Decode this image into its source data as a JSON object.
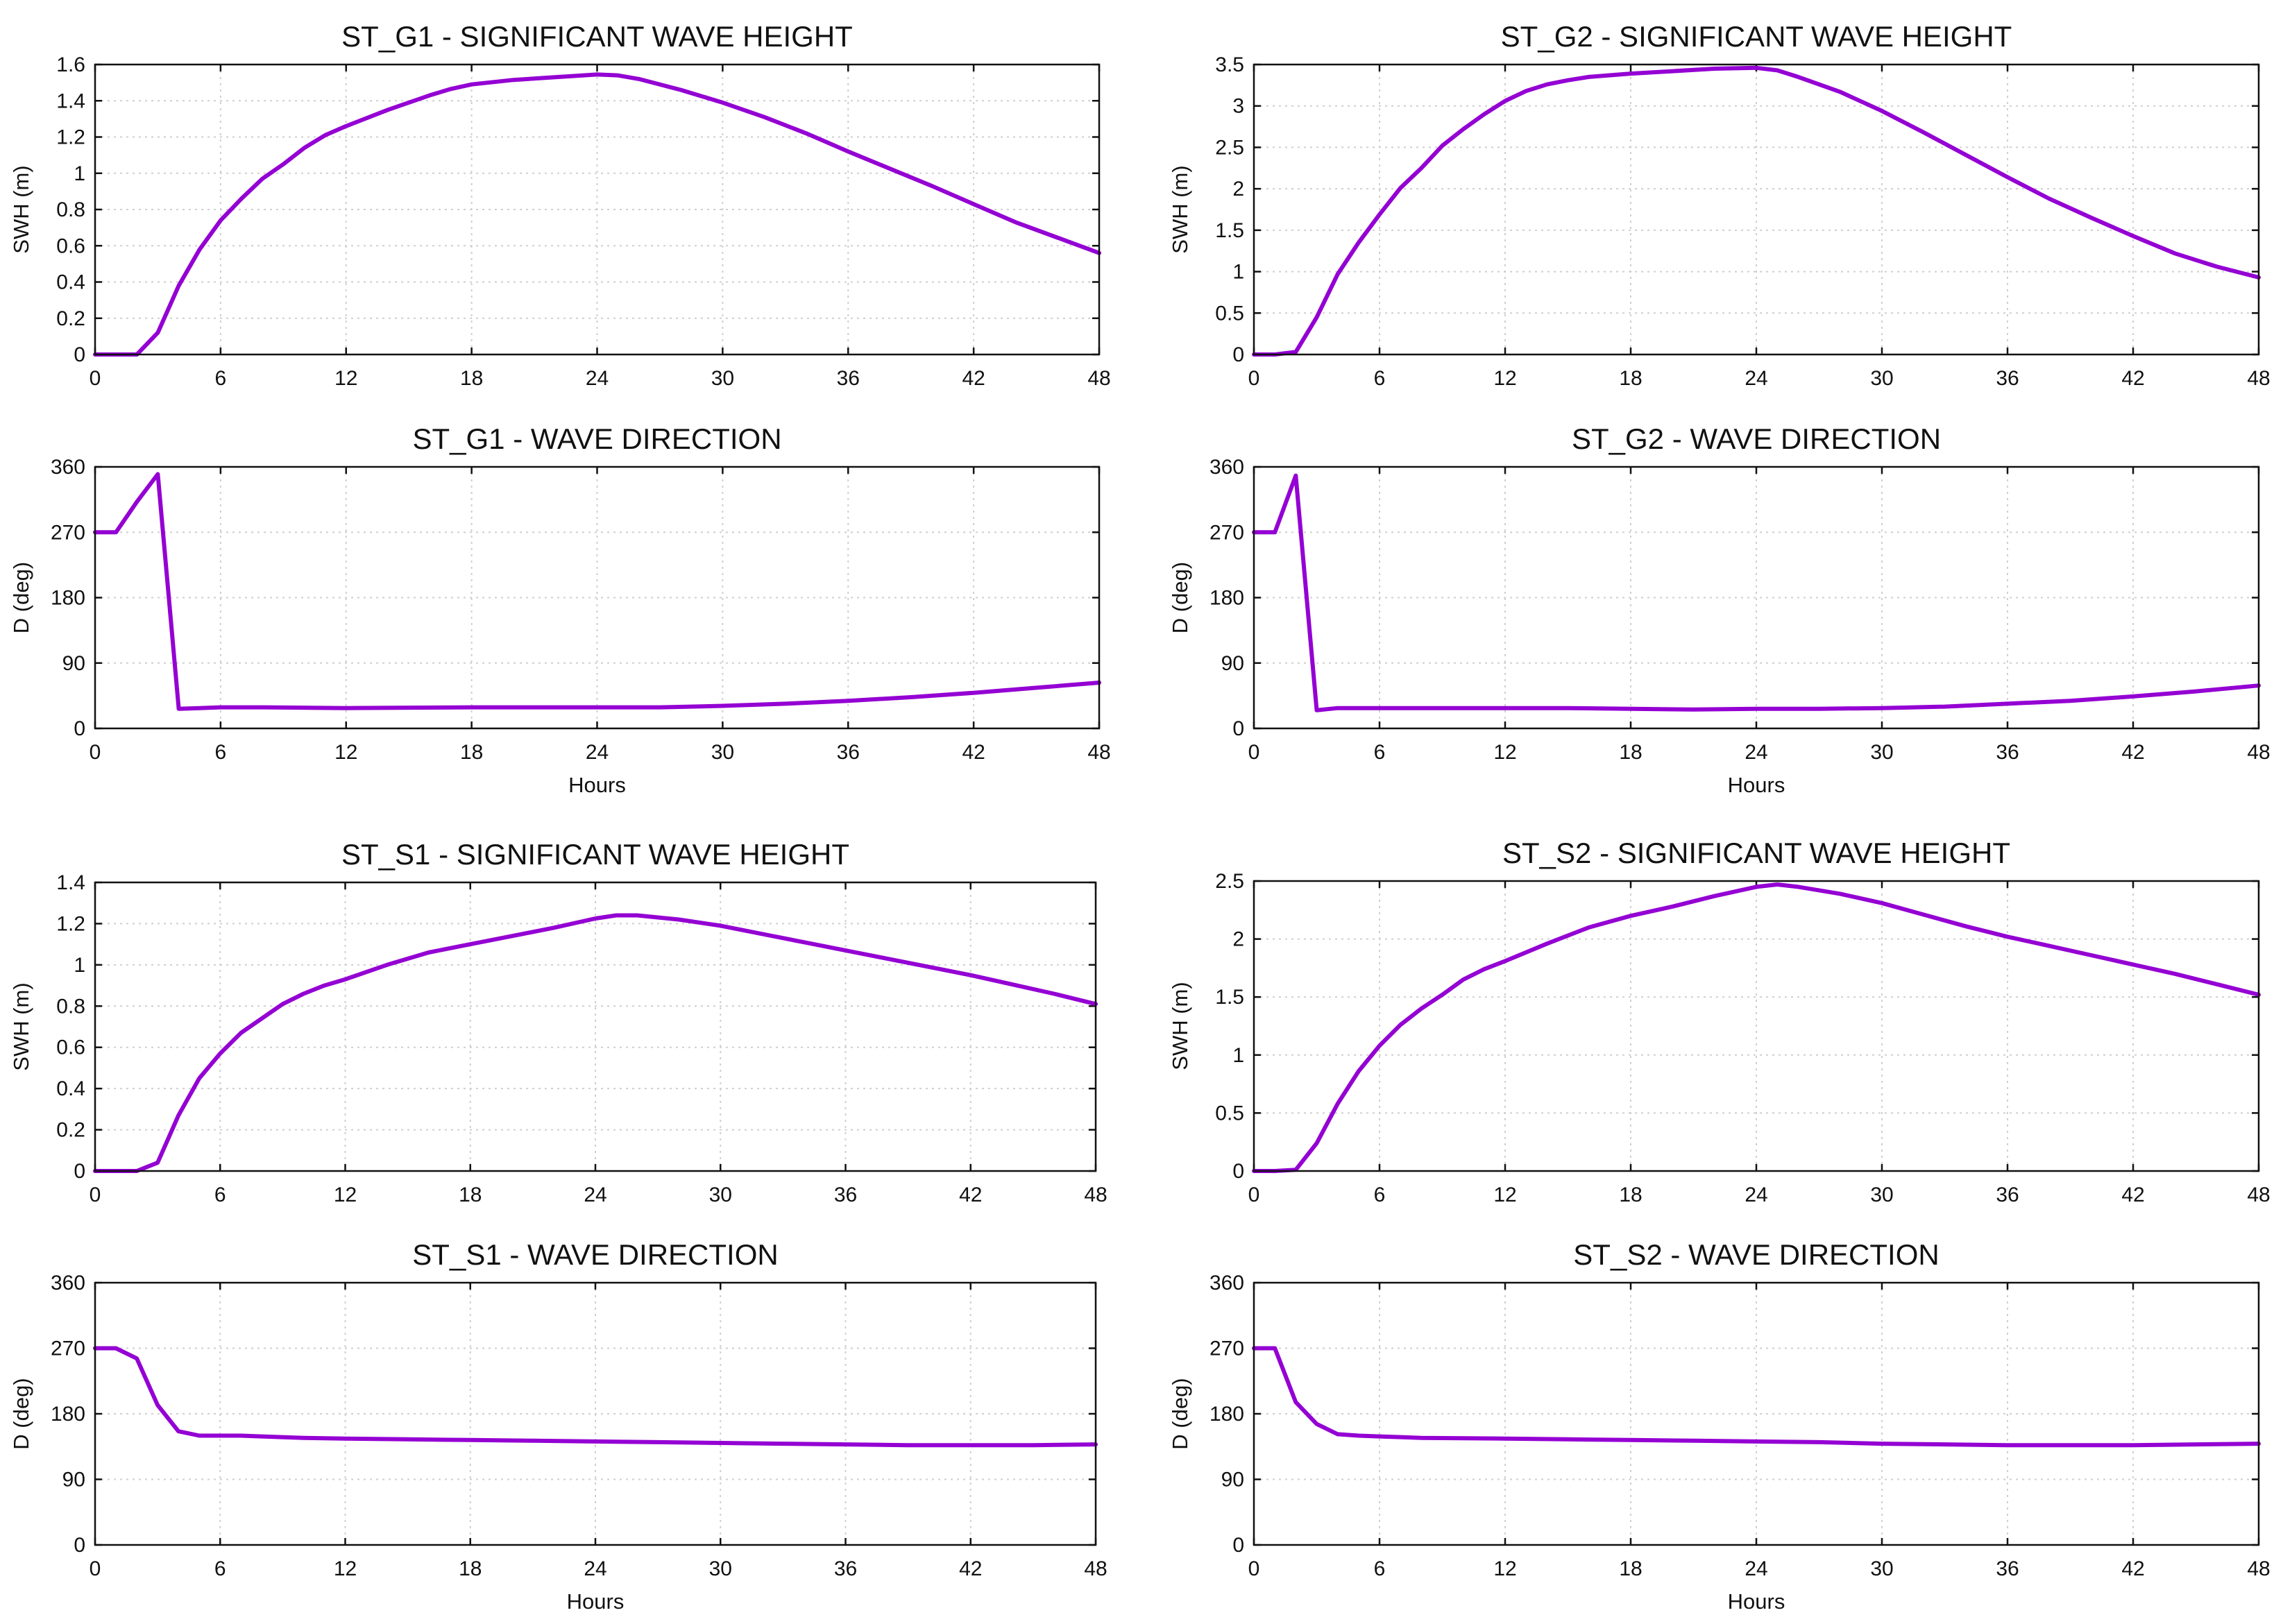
{
  "figure": {
    "series_color": "#9400d3"
  },
  "chart_data": [
    {
      "id": "g1-swh",
      "type": "line",
      "title": "ST_G1 - SIGNIFICANT WAVE HEIGHT",
      "xlabel": "",
      "ylabel": "SWH (m)",
      "xlim": [
        0,
        48
      ],
      "ylim": [
        0,
        1.6
      ],
      "xticks": [
        0,
        6,
        12,
        18,
        24,
        30,
        36,
        42,
        48
      ],
      "yticks": [
        0,
        0.2,
        0.4,
        0.6,
        0.8,
        1,
        1.2,
        1.4,
        1.6
      ],
      "x": [
        0,
        1,
        2,
        3,
        4,
        5,
        6,
        7,
        8,
        9,
        10,
        11,
        12,
        14,
        16,
        17,
        18,
        20,
        22,
        24,
        25,
        26,
        28,
        30,
        32,
        34,
        36,
        38,
        40,
        42,
        44,
        46,
        48
      ],
      "y": [
        0,
        0,
        0,
        0.12,
        0.38,
        0.58,
        0.74,
        0.86,
        0.97,
        1.05,
        1.14,
        1.21,
        1.26,
        1.35,
        1.43,
        1.465,
        1.49,
        1.515,
        1.53,
        1.545,
        1.54,
        1.52,
        1.46,
        1.39,
        1.31,
        1.22,
        1.12,
        1.025,
        0.93,
        0.83,
        0.73,
        0.645,
        0.56
      ]
    },
    {
      "id": "g2-swh",
      "type": "line",
      "title": "ST_G2 - SIGNIFICANT WAVE HEIGHT",
      "xlabel": "",
      "ylabel": "SWH (m)",
      "xlim": [
        0,
        48
      ],
      "ylim": [
        0,
        3.5
      ],
      "xticks": [
        0,
        6,
        12,
        18,
        24,
        30,
        36,
        42,
        48
      ],
      "yticks": [
        0,
        0.5,
        1,
        1.5,
        2,
        2.5,
        3,
        3.5
      ],
      "x": [
        0,
        1,
        2,
        3,
        4,
        5,
        6,
        7,
        8,
        9,
        10,
        11,
        12,
        13,
        14,
        15,
        16,
        18,
        20,
        22,
        24,
        25,
        26,
        28,
        30,
        32,
        34,
        36,
        38,
        40,
        42,
        44,
        46,
        48
      ],
      "y": [
        0,
        0,
        0.03,
        0.45,
        0.97,
        1.35,
        1.69,
        2.01,
        2.25,
        2.52,
        2.72,
        2.9,
        3.06,
        3.18,
        3.26,
        3.31,
        3.35,
        3.39,
        3.42,
        3.45,
        3.46,
        3.43,
        3.35,
        3.17,
        2.94,
        2.68,
        2.41,
        2.14,
        1.88,
        1.65,
        1.43,
        1.22,
        1.06,
        0.93
      ]
    },
    {
      "id": "g1-dir",
      "type": "line",
      "title": "ST_G1 -  WAVE DIRECTION",
      "xlabel": "Hours",
      "ylabel": "D (deg)",
      "xlim": [
        0,
        48
      ],
      "ylim": [
        0,
        360
      ],
      "xticks": [
        0,
        6,
        12,
        18,
        24,
        30,
        36,
        42,
        48
      ],
      "yticks": [
        0,
        90,
        180,
        270,
        360
      ],
      "x": [
        0,
        1,
        2,
        3,
        4,
        5,
        6,
        8,
        12,
        18,
        24,
        27,
        30,
        33,
        36,
        39,
        42,
        45,
        48
      ],
      "y": [
        270,
        270,
        312,
        350,
        27,
        28,
        29,
        29,
        28,
        29,
        29,
        29,
        31,
        34,
        38,
        43,
        49,
        56,
        63
      ]
    },
    {
      "id": "g2-dir",
      "type": "line",
      "title": "ST_G2 -  WAVE DIRECTION",
      "xlabel": "Hours",
      "ylabel": "D (deg)",
      "xlim": [
        0,
        48
      ],
      "ylim": [
        0,
        360
      ],
      "xticks": [
        0,
        6,
        12,
        18,
        24,
        30,
        36,
        42,
        48
      ],
      "yticks": [
        0,
        90,
        180,
        270,
        360
      ],
      "x": [
        0,
        1,
        2,
        3,
        4,
        6,
        9,
        12,
        15,
        18,
        21,
        24,
        27,
        30,
        33,
        36,
        39,
        42,
        45,
        48
      ],
      "y": [
        270,
        270,
        348,
        25,
        28,
        28,
        28,
        28,
        28,
        27,
        26,
        27,
        27,
        28,
        30,
        34,
        38,
        44,
        51,
        59
      ]
    },
    {
      "id": "s1-swh",
      "type": "line",
      "title": "ST_S1 - SIGNIFICANT WAVE HEIGHT",
      "xlabel": "",
      "ylabel": "SWH (m)",
      "xlim": [
        0,
        48
      ],
      "ylim": [
        0,
        1.4
      ],
      "xticks": [
        0,
        6,
        12,
        18,
        24,
        30,
        36,
        42,
        48
      ],
      "yticks": [
        0,
        0.2,
        0.4,
        0.6,
        0.8,
        1,
        1.2,
        1.4
      ],
      "x": [
        0,
        1,
        2,
        3,
        4,
        5,
        6,
        7,
        8,
        9,
        10,
        11,
        12,
        14,
        16,
        18,
        20,
        22,
        24,
        25,
        26,
        28,
        30,
        32,
        34,
        36,
        38,
        40,
        42,
        44,
        46,
        48
      ],
      "y": [
        0,
        0,
        0,
        0.04,
        0.27,
        0.45,
        0.57,
        0.67,
        0.74,
        0.81,
        0.86,
        0.9,
        0.93,
        1.0,
        1.06,
        1.1,
        1.14,
        1.18,
        1.225,
        1.24,
        1.24,
        1.22,
        1.19,
        1.15,
        1.11,
        1.07,
        1.03,
        0.99,
        0.95,
        0.905,
        0.86,
        0.81
      ]
    },
    {
      "id": "s2-swh",
      "type": "line",
      "title": "ST_S2 - SIGNIFICANT WAVE HEIGHT",
      "xlabel": "",
      "ylabel": "SWH (m)",
      "xlim": [
        0,
        48
      ],
      "ylim": [
        0,
        2.5
      ],
      "xticks": [
        0,
        6,
        12,
        18,
        24,
        30,
        36,
        42,
        48
      ],
      "yticks": [
        0,
        0.5,
        1,
        1.5,
        2,
        2.5
      ],
      "x": [
        0,
        1,
        2,
        3,
        4,
        5,
        6,
        7,
        8,
        9,
        10,
        11,
        12,
        14,
        16,
        18,
        20,
        22,
        24,
        25,
        26,
        28,
        30,
        32,
        34,
        36,
        38,
        40,
        42,
        44,
        46,
        48
      ],
      "y": [
        0,
        0,
        0.01,
        0.24,
        0.58,
        0.86,
        1.08,
        1.26,
        1.4,
        1.52,
        1.65,
        1.74,
        1.81,
        1.96,
        2.1,
        2.2,
        2.28,
        2.37,
        2.45,
        2.47,
        2.45,
        2.39,
        2.31,
        2.21,
        2.11,
        2.02,
        1.94,
        1.86,
        1.78,
        1.7,
        1.61,
        1.52
      ]
    },
    {
      "id": "s1-dir",
      "type": "line",
      "title": "ST_S1 -  WAVE DIRECTION",
      "xlabel": "Hours",
      "ylabel": "D (deg)",
      "xlim": [
        0,
        48
      ],
      "ylim": [
        0,
        360
      ],
      "xticks": [
        0,
        6,
        12,
        18,
        24,
        30,
        36,
        42,
        48
      ],
      "yticks": [
        0,
        90,
        180,
        270,
        360
      ],
      "x": [
        0,
        1,
        2,
        3,
        4,
        5,
        6,
        7,
        8,
        10,
        12,
        15,
        18,
        21,
        24,
        27,
        30,
        33,
        36,
        39,
        42,
        45,
        48
      ],
      "y": [
        270,
        270,
        256,
        192,
        156,
        150,
        150,
        150,
        149,
        147,
        146,
        145,
        144,
        143,
        142,
        141,
        140,
        139,
        138,
        137,
        137,
        137,
        138
      ]
    },
    {
      "id": "s2-dir",
      "type": "line",
      "title": "ST_S2 -  WAVE DIRECTION",
      "xlabel": "Hours",
      "ylabel": "D (deg)",
      "xlim": [
        0,
        48
      ],
      "ylim": [
        0,
        360
      ],
      "xticks": [
        0,
        6,
        12,
        18,
        24,
        30,
        36,
        42,
        48
      ],
      "yticks": [
        0,
        90,
        180,
        270,
        360
      ],
      "x": [
        0,
        1,
        2,
        3,
        4,
        5,
        6,
        8,
        12,
        15,
        18,
        21,
        24,
        27,
        30,
        33,
        36,
        39,
        42,
        45,
        48
      ],
      "y": [
        270,
        270,
        196,
        166,
        152,
        150,
        149,
        147,
        146,
        145,
        144,
        143,
        142,
        141,
        139,
        138,
        137,
        137,
        137,
        138,
        139
      ]
    }
  ]
}
